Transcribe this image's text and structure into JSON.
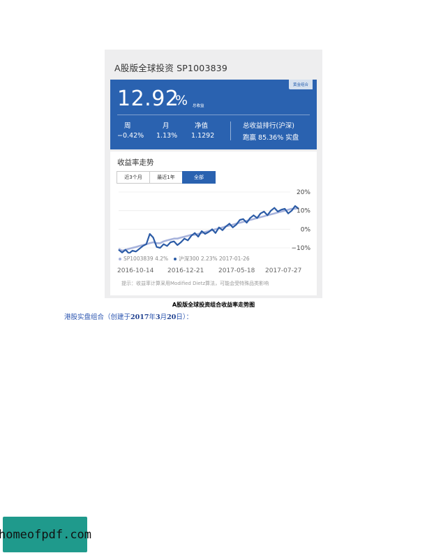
{
  "card": {
    "title": "A股版全球投资 SP1003839",
    "tag": "黄金组合",
    "return_value": "12.92",
    "return_unit": "%",
    "return_label": "总收益",
    "stats": [
      {
        "label": "周",
        "value": "−0.42%"
      },
      {
        "label": "月",
        "value": "1.13%"
      },
      {
        "label": "净值",
        "value": "1.1292"
      }
    ],
    "rank_label": "总收益排行(沪深)",
    "rank_value": "跑赢 85.36% 实盘"
  },
  "panel": {
    "title": "收益率走势",
    "tabs": [
      {
        "label": "近3个月",
        "active": false
      },
      {
        "label": "最近1年",
        "active": false
      },
      {
        "label": "全部",
        "active": true
      }
    ],
    "legend": {
      "series_a": "SP1003839 4.2%",
      "series_b": "沪深300 2.23% 2017-01-26"
    },
    "note": "提示：收益率计算采用Modified Dietz算法，可能会受特殊品类影响"
  },
  "chart_data": {
    "type": "line",
    "y_ticks": [
      "20%",
      "10%",
      "0%",
      "−10%"
    ],
    "ylim": [
      -10,
      20
    ],
    "x_ticks": [
      "2016-10-14",
      "2016-12-21",
      "2017-05-18",
      "2017-07-27"
    ],
    "colors": {
      "portfolio": "#2b5ba6",
      "benchmark": "#a7b3dc"
    },
    "series": [
      {
        "name": "SP1003839",
        "color": "#2b5ba6",
        "values": [
          -11,
          -12.5,
          -11,
          -13,
          -11.5,
          -12,
          -10.5,
          -9,
          -8,
          -2.5,
          -4.5,
          -9.5,
          -10,
          -8,
          -9,
          -7,
          -6.5,
          -8.5,
          -7,
          -5,
          -6,
          -3.5,
          -2,
          -4,
          -1,
          -2.5,
          -1.5,
          0,
          -2,
          1,
          -0.5,
          1.5,
          3,
          1,
          2.5,
          5,
          5.5,
          3.5,
          6,
          7.5,
          6,
          8.5,
          9.5,
          7.5,
          10,
          11.5,
          9.5,
          10.5,
          11,
          8.5,
          10,
          12.5,
          11
        ]
      },
      {
        "name": "沪深300",
        "color": "#a7b3dc",
        "values": [
          -10.5,
          -11.5,
          -11,
          -10.5,
          -10,
          -9.5,
          -9,
          -8.5,
          -8,
          -7.5,
          -7,
          -7.5,
          -7.5,
          -6.5,
          -6,
          -5.5,
          -5,
          -5,
          -4.5,
          -4,
          -3.5,
          -3,
          -3,
          -2.5,
          -2,
          -1.5,
          -1,
          -0.5,
          0,
          0.5,
          1,
          1.5,
          2,
          2.5,
          3,
          3.5,
          4,
          4.5,
          5,
          5.5,
          6,
          6.5,
          7,
          7.5,
          8,
          8.5,
          9,
          9.5,
          10,
          10.5,
          11,
          11,
          11.5
        ]
      }
    ]
  },
  "caption": "A股版全球投资组合收益率走势图",
  "paragraph": {
    "prefix": "港股实盘组合（创建于",
    "year": "2017",
    "year_unit": "年",
    "month": "3",
    "month_unit": "月",
    "day": "20",
    "suffix": "日）："
  },
  "watermark": "homeofpdf.com"
}
